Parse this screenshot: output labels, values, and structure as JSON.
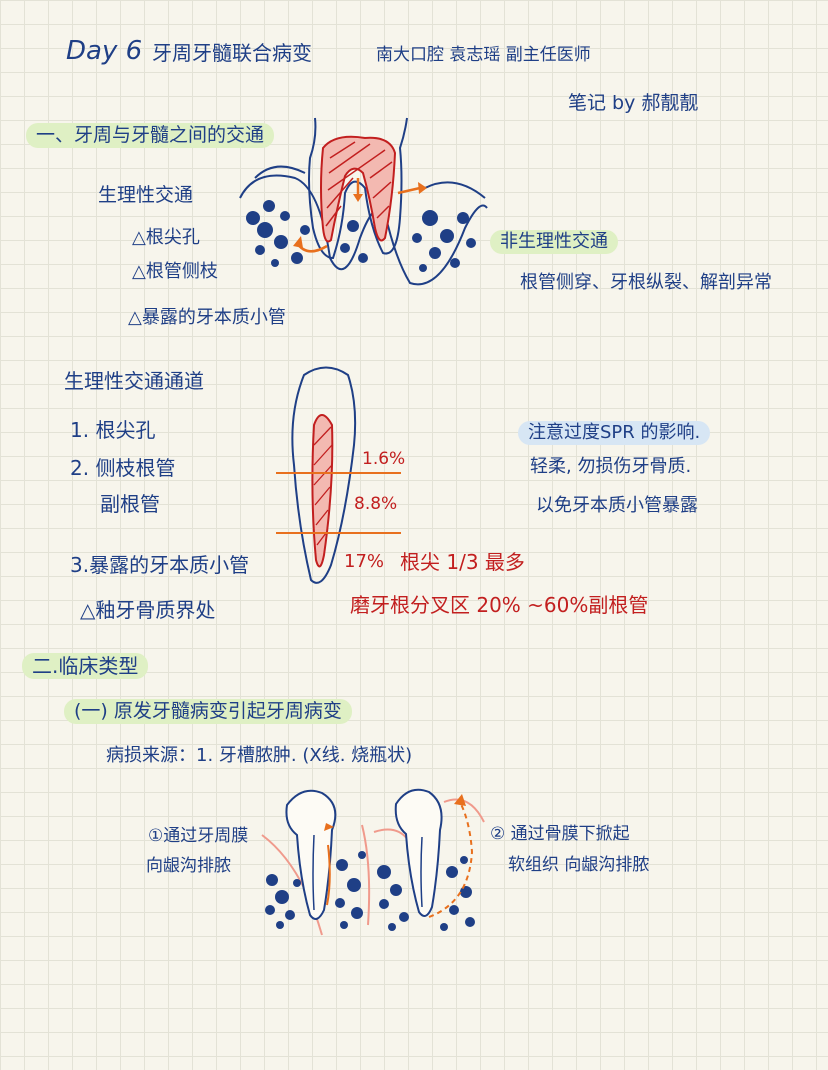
{
  "header": {
    "day": "Day 6",
    "title": "牙周牙髓联合病变",
    "lecturer": "南大口腔 袁志瑶 副主任医师",
    "note_by": "笔记 by 郝靓靓"
  },
  "section1": {
    "heading": "一、牙周与牙髓之间的交通",
    "physiological": {
      "title": "生理性交通",
      "items": [
        "△根尖孔",
        "△根管侧枝",
        "△暴露的牙本质小管"
      ]
    },
    "nonphysiological": {
      "title": "非生理性交通",
      "items": "根管侧穿、牙根纵裂、解剖异常"
    },
    "channels": {
      "title": "生理性交通通道",
      "items": [
        "1. 根尖孔",
        "2. 侧枝根管",
        "副根管",
        "3.暴露的牙本质小管",
        "△釉牙骨质界处"
      ]
    },
    "percentages": {
      "cervical": "1.6%",
      "middle": "8.8%",
      "apical": "17%",
      "apical_note": "根尖 1/3 最多"
    },
    "furcation_note": "磨牙根分叉区 20% ~60%副根管",
    "spr": {
      "title": "注意过度SPR 的影响.",
      "line1": "轻柔, 勿损伤牙骨质.",
      "line2": "以免牙本质小管暴露"
    }
  },
  "section2": {
    "heading": "二.临床类型",
    "subheading": "(一) 原发牙髓病变引起牙周病变",
    "source": "病损来源：1. 牙槽脓肿. (X线. 烧瓶状)",
    "route1_line1": "①通过牙周膜",
    "route1_line2": "向龈沟排脓",
    "route2_line1": "② 通过骨膜下掀起",
    "route2_line2": "软组织 向龈沟排脓"
  },
  "colors": {
    "ink": "#1f3f86",
    "red": "#c21f1f",
    "green_highlight": "#dff0c4",
    "blue_highlight": "#d7e6f4",
    "orange": "#e8701e"
  }
}
